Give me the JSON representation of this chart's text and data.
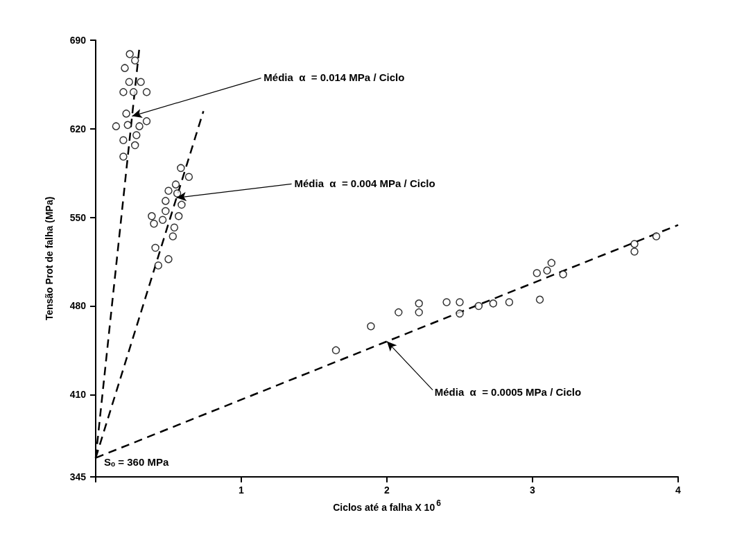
{
  "chart_data": {
    "type": "scatter",
    "xlabel": "Ciclos até a falha X 10$^{6}$",
    "ylabel": "Tensão Prot de falha (MPa)",
    "xlim": [
      0,
      4
    ],
    "xticks": [
      {
        "value": 0,
        "label": null
      },
      1,
      2,
      3,
      4
    ],
    "ylim": [
      345,
      690
    ],
    "yticks": [
      345,
      410,
      480,
      550,
      620,
      690
    ],
    "grid": false,
    "marker": "circle",
    "series": [
      {
        "color": "#000000",
        "x": [
          0.234,
          0.27,
          0.2,
          0.23,
          0.31,
          0.19,
          0.26,
          0.35,
          0.21,
          0.14,
          0.22,
          0.3,
          0.35,
          0.28,
          0.19,
          0.27,
          0.19
        ],
        "values": [
          679,
          674,
          668,
          657,
          657,
          649,
          649,
          649,
          632,
          622,
          623,
          622,
          626,
          615,
          611,
          607,
          598
        ]
      },
      {
        "color": "#000000",
        "x": [
          0.585,
          0.64,
          0.55,
          0.5,
          0.56,
          0.48,
          0.59,
          0.48,
          0.57,
          0.385,
          0.46,
          0.4,
          0.54,
          0.53,
          0.41,
          0.5,
          0.43
        ],
        "values": [
          589,
          582,
          576,
          571,
          569,
          563,
          560,
          555,
          551,
          551,
          548,
          545,
          542,
          535,
          526,
          517,
          512
        ]
      },
      {
        "color": "#000000",
        "x": [
          3.85,
          3.7,
          3.7,
          3.13,
          3.1,
          3.03,
          3.21,
          3.05,
          2.22,
          2.41,
          2.5,
          2.08,
          2.22,
          2.5,
          2.63,
          2.73,
          2.84,
          1.89,
          1.65
        ],
        "values": [
          535,
          529,
          523,
          514,
          508,
          506,
          505,
          485,
          482,
          483,
          483,
          475,
          475,
          474,
          480,
          482,
          483,
          464,
          445
        ]
      },
      {
        "type": "line",
        "color": "#000000",
        "marker": "none",
        "line_style": "dashed",
        "x": [
          0,
          0.3
        ],
        "values": [
          360,
          684
        ]
      },
      {
        "type": "line",
        "color": "#000000",
        "marker": "none",
        "line_style": "dashed",
        "x": [
          0,
          0.74
        ],
        "values": [
          360,
          634
        ]
      },
      {
        "type": "line",
        "color": "#000000",
        "marker": "none",
        "line_style": "dashed",
        "x": [
          0,
          4
        ],
        "values": [
          360,
          544
        ]
      }
    ],
    "annotations": [
      {
        "text": "Média  α  = 0.014 MPa / Ciclo",
        "x": 0.25,
        "y": 630
      },
      {
        "text": "Média  α  = 0.004 MPa / Ciclo",
        "x": 0.555,
        "y": 565.5
      },
      {
        "text": "Média  α  = 0.0005 MPa / Ciclo",
        "x": 2,
        "y": 452
      },
      "Sₒ = 360 MPa"
    ]
  }
}
